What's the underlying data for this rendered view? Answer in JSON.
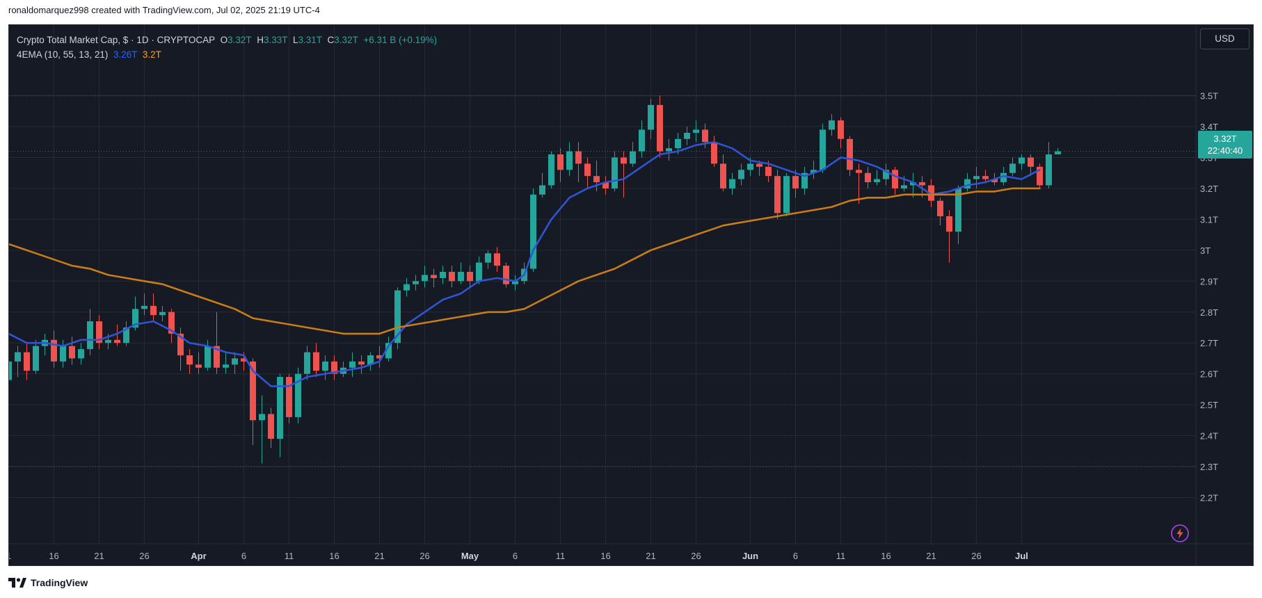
{
  "credit": "ronaldomarquez998 created with TradingView.com, Jul 02, 2025 21:19 UTC-4",
  "legend": {
    "symbol": "Crypto Total Market Cap, $ · 1D · CRYPTOCAP",
    "o_label": "O",
    "o_value": "3.32T",
    "h_label": "H",
    "h_value": "3.33T",
    "l_label": "L",
    "l_value": "3.31T",
    "c_label": "C",
    "c_value": "3.32T",
    "change": "+6.31 B (+0.19%)",
    "indicator": "4EMA (10, 55, 13, 21)",
    "ema_fast_value": "3.26T",
    "ema_slow_value": "3.2T"
  },
  "currency": "USD",
  "price_badge": {
    "price": "3.32T",
    "countdown": "22:40:40"
  },
  "footer": {
    "brand": "TradingView"
  },
  "colors": {
    "up": "#26a69a",
    "down": "#ef5350",
    "ema_fast": "#2f55d4",
    "ema_slow": "#c97d16",
    "background": "#161a25",
    "grid": "#262a35",
    "text": "#b2b5be"
  },
  "chart_data": {
    "type": "candlestick",
    "title": "Crypto Total Market Cap, $ · 1D · CRYPTOCAP",
    "y_unit": "T",
    "ylim": [
      2.18,
      3.56
    ],
    "y_ticks": [
      "3.5T",
      "3.4T",
      "3.3T",
      "3.2T",
      "3.1T",
      "3T",
      "2.9T",
      "2.8T",
      "2.7T",
      "2.6T",
      "2.5T",
      "2.4T",
      "2.3T",
      "2.2T"
    ],
    "y_tick_values": [
      3.5,
      3.4,
      3.3,
      3.2,
      3.1,
      3.0,
      2.9,
      2.8,
      2.7,
      2.6,
      2.5,
      2.4,
      2.3,
      2.2
    ],
    "x_ticks": [
      {
        "label": "1",
        "day": 0
      },
      {
        "label": "16",
        "day": 5
      },
      {
        "label": "21",
        "day": 10
      },
      {
        "label": "26",
        "day": 15
      },
      {
        "label": "Apr",
        "day": 21
      },
      {
        "label": "6",
        "day": 26
      },
      {
        "label": "11",
        "day": 31
      },
      {
        "label": "16",
        "day": 36
      },
      {
        "label": "21",
        "day": 41
      },
      {
        "label": "26",
        "day": 46
      },
      {
        "label": "May",
        "day": 51
      },
      {
        "label": "6",
        "day": 56
      },
      {
        "label": "11",
        "day": 61
      },
      {
        "label": "16",
        "day": 66
      },
      {
        "label": "21",
        "day": 71
      },
      {
        "label": "26",
        "day": 76
      },
      {
        "label": "Jun",
        "day": 82
      },
      {
        "label": "6",
        "day": 87
      },
      {
        "label": "11",
        "day": 92
      },
      {
        "label": "16",
        "day": 97
      },
      {
        "label": "21",
        "day": 102
      },
      {
        "label": "26",
        "day": 107
      },
      {
        "label": "Jul",
        "day": 112
      }
    ],
    "dotted_levels": [
      3.5,
      3.32,
      2.3
    ],
    "last_price": 3.32,
    "candles": [
      [
        2.58,
        2.64,
        2.66,
        2.52
      ],
      [
        2.64,
        2.67,
        2.69,
        2.59
      ],
      [
        2.67,
        2.61,
        2.7,
        2.58
      ],
      [
        2.61,
        2.69,
        2.71,
        2.6
      ],
      [
        2.69,
        2.71,
        2.73,
        2.66
      ],
      [
        2.71,
        2.64,
        2.74,
        2.62
      ],
      [
        2.64,
        2.69,
        2.71,
        2.62
      ],
      [
        2.69,
        2.65,
        2.72,
        2.63
      ],
      [
        2.65,
        2.68,
        2.7,
        2.63
      ],
      [
        2.68,
        2.77,
        2.81,
        2.66
      ],
      [
        2.77,
        2.7,
        2.79,
        2.68
      ],
      [
        2.7,
        2.71,
        2.73,
        2.68
      ],
      [
        2.71,
        2.7,
        2.76,
        2.69
      ],
      [
        2.7,
        2.75,
        2.77,
        2.69
      ],
      [
        2.75,
        2.81,
        2.85,
        2.74
      ],
      [
        2.81,
        2.82,
        2.86,
        2.79
      ],
      [
        2.82,
        2.79,
        2.86,
        2.77
      ],
      [
        2.79,
        2.8,
        2.82,
        2.77
      ],
      [
        2.8,
        2.73,
        2.81,
        2.7
      ],
      [
        2.73,
        2.66,
        2.75,
        2.61
      ],
      [
        2.66,
        2.63,
        2.68,
        2.6
      ],
      [
        2.63,
        2.62,
        2.67,
        2.6
      ],
      [
        2.62,
        2.69,
        2.71,
        2.61
      ],
      [
        2.69,
        2.62,
        2.8,
        2.6
      ],
      [
        2.62,
        2.63,
        2.67,
        2.6
      ],
      [
        2.63,
        2.65,
        2.67,
        2.6
      ],
      [
        2.65,
        2.64,
        2.67,
        2.61
      ],
      [
        2.64,
        2.45,
        2.65,
        2.37
      ],
      [
        2.45,
        2.47,
        2.53,
        2.31
      ],
      [
        2.47,
        2.39,
        2.49,
        2.36
      ],
      [
        2.39,
        2.59,
        2.6,
        2.33
      ],
      [
        2.59,
        2.46,
        2.6,
        2.44
      ],
      [
        2.46,
        2.6,
        2.62,
        2.44
      ],
      [
        2.6,
        2.67,
        2.69,
        2.58
      ],
      [
        2.67,
        2.61,
        2.7,
        2.59
      ],
      [
        2.61,
        2.64,
        2.66,
        2.58
      ],
      [
        2.64,
        2.6,
        2.66,
        2.58
      ],
      [
        2.6,
        2.62,
        2.64,
        2.59
      ],
      [
        2.62,
        2.64,
        2.67,
        2.59
      ],
      [
        2.64,
        2.63,
        2.66,
        2.6
      ],
      [
        2.63,
        2.66,
        2.67,
        2.61
      ],
      [
        2.66,
        2.65,
        2.69,
        2.62
      ],
      [
        2.65,
        2.7,
        2.72,
        2.64
      ],
      [
        2.7,
        2.87,
        2.88,
        2.68
      ],
      [
        2.87,
        2.89,
        2.91,
        2.85
      ],
      [
        2.89,
        2.9,
        2.92,
        2.87
      ],
      [
        2.9,
        2.92,
        2.95,
        2.88
      ],
      [
        2.92,
        2.91,
        2.94,
        2.88
      ],
      [
        2.91,
        2.93,
        2.95,
        2.89
      ],
      [
        2.93,
        2.9,
        2.95,
        2.88
      ],
      [
        2.9,
        2.93,
        2.96,
        2.89
      ],
      [
        2.93,
        2.9,
        2.95,
        2.88
      ],
      [
        2.9,
        2.96,
        2.98,
        2.89
      ],
      [
        2.96,
        2.99,
        3.0,
        2.94
      ],
      [
        2.99,
        2.95,
        3.01,
        2.93
      ],
      [
        2.95,
        2.89,
        2.96,
        2.88
      ],
      [
        2.89,
        2.9,
        2.92,
        2.87
      ],
      [
        2.9,
        2.94,
        2.96,
        2.89
      ],
      [
        2.94,
        3.18,
        3.2,
        2.93
      ],
      [
        3.18,
        3.21,
        3.25,
        3.17
      ],
      [
        3.21,
        3.31,
        3.32,
        3.2
      ],
      [
        3.31,
        3.26,
        3.33,
        3.22
      ],
      [
        3.26,
        3.32,
        3.35,
        3.24
      ],
      [
        3.32,
        3.28,
        3.35,
        3.22
      ],
      [
        3.28,
        3.24,
        3.3,
        3.2
      ],
      [
        3.24,
        3.22,
        3.29,
        3.19
      ],
      [
        3.22,
        3.2,
        3.24,
        3.18
      ],
      [
        3.2,
        3.3,
        3.32,
        3.19
      ],
      [
        3.3,
        3.28,
        3.32,
        3.17
      ],
      [
        3.28,
        3.32,
        3.35,
        3.27
      ],
      [
        3.32,
        3.39,
        3.42,
        3.3
      ],
      [
        3.39,
        3.47,
        3.49,
        3.36
      ],
      [
        3.47,
        3.32,
        3.5,
        3.3
      ],
      [
        3.32,
        3.33,
        3.36,
        3.29
      ],
      [
        3.33,
        3.36,
        3.38,
        3.31
      ],
      [
        3.36,
        3.38,
        3.4,
        3.34
      ],
      [
        3.38,
        3.39,
        3.42,
        3.35
      ],
      [
        3.39,
        3.35,
        3.41,
        3.33
      ],
      [
        3.35,
        3.28,
        3.37,
        3.27
      ],
      [
        3.28,
        3.2,
        3.31,
        3.19
      ],
      [
        3.2,
        3.23,
        3.25,
        3.18
      ],
      [
        3.23,
        3.26,
        3.28,
        3.21
      ],
      [
        3.26,
        3.28,
        3.3,
        3.24
      ],
      [
        3.28,
        3.27,
        3.29,
        3.24
      ],
      [
        3.27,
        3.24,
        3.29,
        3.22
      ],
      [
        3.24,
        3.12,
        3.26,
        3.1
      ],
      [
        3.12,
        3.24,
        3.25,
        3.11
      ],
      [
        3.24,
        3.2,
        3.26,
        3.17
      ],
      [
        3.2,
        3.25,
        3.27,
        3.18
      ],
      [
        3.25,
        3.26,
        3.29,
        3.23
      ],
      [
        3.26,
        3.39,
        3.41,
        3.25
      ],
      [
        3.39,
        3.42,
        3.44,
        3.37
      ],
      [
        3.42,
        3.36,
        3.43,
        3.33
      ],
      [
        3.36,
        3.26,
        3.37,
        3.24
      ],
      [
        3.26,
        3.25,
        3.28,
        3.15
      ],
      [
        3.25,
        3.22,
        3.27,
        3.2
      ],
      [
        3.22,
        3.23,
        3.26,
        3.21
      ],
      [
        3.23,
        3.26,
        3.28,
        3.21
      ],
      [
        3.26,
        3.2,
        3.27,
        3.18
      ],
      [
        3.2,
        3.21,
        3.24,
        3.19
      ],
      [
        3.21,
        3.22,
        3.25,
        3.17
      ],
      [
        3.22,
        3.21,
        3.24,
        3.17
      ],
      [
        3.21,
        3.16,
        3.23,
        3.14
      ],
      [
        3.16,
        3.11,
        3.17,
        3.08
      ],
      [
        3.11,
        3.06,
        3.13,
        2.96
      ],
      [
        3.06,
        3.2,
        3.21,
        3.02
      ],
      [
        3.2,
        3.23,
        3.25,
        3.19
      ],
      [
        3.23,
        3.24,
        3.27,
        3.2
      ],
      [
        3.24,
        3.23,
        3.26,
        3.22
      ],
      [
        3.23,
        3.22,
        3.25,
        3.21
      ],
      [
        3.22,
        3.25,
        3.27,
        3.21
      ],
      [
        3.25,
        3.28,
        3.3,
        3.24
      ],
      [
        3.28,
        3.3,
        3.31,
        3.26
      ],
      [
        3.3,
        3.27,
        3.31,
        3.24
      ],
      [
        3.27,
        3.21,
        3.28,
        3.2
      ],
      [
        3.21,
        3.31,
        3.35,
        3.2
      ],
      [
        3.31,
        3.32,
        3.33,
        3.31
      ]
    ],
    "series": [
      {
        "name": "3.26T",
        "color": "#2f55d4",
        "points": [
          [
            -1,
            2.74
          ],
          [
            0,
            2.73
          ],
          [
            2,
            2.7
          ],
          [
            4,
            2.7
          ],
          [
            6,
            2.69
          ],
          [
            8,
            2.71
          ],
          [
            10,
            2.71
          ],
          [
            12,
            2.73
          ],
          [
            14,
            2.76
          ],
          [
            16,
            2.77
          ],
          [
            18,
            2.74
          ],
          [
            20,
            2.7
          ],
          [
            22,
            2.69
          ],
          [
            24,
            2.67
          ],
          [
            26,
            2.66
          ],
          [
            27,
            2.61
          ],
          [
            29,
            2.56
          ],
          [
            31,
            2.56
          ],
          [
            33,
            2.59
          ],
          [
            35,
            2.6
          ],
          [
            37,
            2.61
          ],
          [
            39,
            2.62
          ],
          [
            41,
            2.64
          ],
          [
            42,
            2.69
          ],
          [
            44,
            2.76
          ],
          [
            46,
            2.8
          ],
          [
            48,
            2.84
          ],
          [
            50,
            2.86
          ],
          [
            52,
            2.9
          ],
          [
            54,
            2.91
          ],
          [
            56,
            2.9
          ],
          [
            57,
            2.92
          ],
          [
            58,
            3.0
          ],
          [
            60,
            3.1
          ],
          [
            62,
            3.17
          ],
          [
            64,
            3.2
          ],
          [
            66,
            3.22
          ],
          [
            68,
            3.23
          ],
          [
            70,
            3.27
          ],
          [
            72,
            3.31
          ],
          [
            74,
            3.32
          ],
          [
            76,
            3.34
          ],
          [
            78,
            3.35
          ],
          [
            80,
            3.33
          ],
          [
            82,
            3.29
          ],
          [
            84,
            3.28
          ],
          [
            86,
            3.26
          ],
          [
            88,
            3.24
          ],
          [
            90,
            3.26
          ],
          [
            92,
            3.3
          ],
          [
            94,
            3.29
          ],
          [
            96,
            3.27
          ],
          [
            98,
            3.24
          ],
          [
            100,
            3.22
          ],
          [
            102,
            3.18
          ],
          [
            104,
            3.19
          ],
          [
            106,
            3.21
          ],
          [
            108,
            3.22
          ],
          [
            110,
            3.24
          ],
          [
            112,
            3.23
          ],
          [
            114,
            3.26
          ]
        ]
      },
      {
        "name": "3.2T",
        "color": "#c97d16",
        "points": [
          [
            -1,
            3.03
          ],
          [
            1,
            3.01
          ],
          [
            3,
            2.99
          ],
          [
            5,
            2.97
          ],
          [
            7,
            2.95
          ],
          [
            9,
            2.94
          ],
          [
            11,
            2.92
          ],
          [
            13,
            2.91
          ],
          [
            15,
            2.9
          ],
          [
            17,
            2.89
          ],
          [
            19,
            2.87
          ],
          [
            21,
            2.85
          ],
          [
            23,
            2.83
          ],
          [
            25,
            2.81
          ],
          [
            27,
            2.78
          ],
          [
            29,
            2.77
          ],
          [
            31,
            2.76
          ],
          [
            33,
            2.75
          ],
          [
            35,
            2.74
          ],
          [
            37,
            2.73
          ],
          [
            39,
            2.73
          ],
          [
            41,
            2.73
          ],
          [
            43,
            2.75
          ],
          [
            45,
            2.76
          ],
          [
            47,
            2.77
          ],
          [
            49,
            2.78
          ],
          [
            51,
            2.79
          ],
          [
            53,
            2.8
          ],
          [
            55,
            2.8
          ],
          [
            57,
            2.81
          ],
          [
            59,
            2.84
          ],
          [
            61,
            2.87
          ],
          [
            63,
            2.9
          ],
          [
            65,
            2.92
          ],
          [
            67,
            2.94
          ],
          [
            69,
            2.97
          ],
          [
            71,
            3.0
          ],
          [
            73,
            3.02
          ],
          [
            75,
            3.04
          ],
          [
            77,
            3.06
          ],
          [
            79,
            3.08
          ],
          [
            81,
            3.09
          ],
          [
            83,
            3.1
          ],
          [
            85,
            3.11
          ],
          [
            87,
            3.12
          ],
          [
            89,
            3.13
          ],
          [
            91,
            3.14
          ],
          [
            93,
            3.16
          ],
          [
            95,
            3.17
          ],
          [
            97,
            3.17
          ],
          [
            99,
            3.18
          ],
          [
            101,
            3.18
          ],
          [
            103,
            3.18
          ],
          [
            105,
            3.18
          ],
          [
            107,
            3.19
          ],
          [
            109,
            3.19
          ],
          [
            111,
            3.2
          ],
          [
            113,
            3.2
          ],
          [
            114,
            3.2
          ]
        ]
      }
    ]
  }
}
